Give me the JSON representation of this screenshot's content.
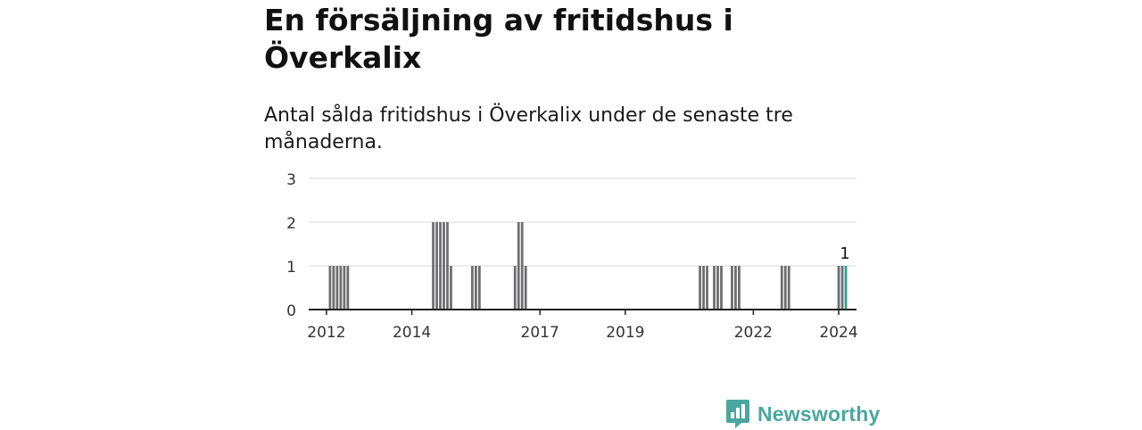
{
  "header": {
    "title": "En försäljning av fritidshus i Överkalix",
    "subtitle": "Antal sålda fritidshus i Överkalix under de senaste tre månaderna."
  },
  "brand": {
    "name": "Newsworthy",
    "color": "#4aa7a0",
    "icon": "newsworthy-logo-icon"
  },
  "chart_data": {
    "type": "bar",
    "title": "En försäljning av fritidshus i Överkalix",
    "subtitle": "Antal sålda fritidshus i Överkalix under de senaste tre månaderna.",
    "xlabel": "",
    "ylabel": "",
    "ylim": [
      0,
      3
    ],
    "yticks": [
      0,
      1,
      2,
      3
    ],
    "xticks": [
      {
        "label": "2012",
        "x": "2012-01"
      },
      {
        "label": "2014",
        "x": "2014-01"
      },
      {
        "label": "2017",
        "x": "2017-01"
      },
      {
        "label": "2019",
        "x": "2019-01"
      },
      {
        "label": "2022",
        "x": "2022-01"
      },
      {
        "label": "2024",
        "x": "2024-01"
      }
    ],
    "x_range": [
      "2011-08",
      "2024-06"
    ],
    "grid": true,
    "bar_color": "#6e6e70",
    "highlight_color": "#2aa198",
    "points": [
      {
        "x": "2012-01",
        "y": 0
      },
      {
        "x": "2012-02",
        "y": 1
      },
      {
        "x": "2012-03",
        "y": 1
      },
      {
        "x": "2012-04",
        "y": 1
      },
      {
        "x": "2012-05",
        "y": 1
      },
      {
        "x": "2012-06",
        "y": 1
      },
      {
        "x": "2012-07",
        "y": 1
      },
      {
        "x": "2014-07",
        "y": 2
      },
      {
        "x": "2014-08",
        "y": 2
      },
      {
        "x": "2014-09",
        "y": 2
      },
      {
        "x": "2014-10",
        "y": 2
      },
      {
        "x": "2014-11",
        "y": 2
      },
      {
        "x": "2014-12",
        "y": 1
      },
      {
        "x": "2015-06",
        "y": 1
      },
      {
        "x": "2015-07",
        "y": 1
      },
      {
        "x": "2015-08",
        "y": 1
      },
      {
        "x": "2016-06",
        "y": 1
      },
      {
        "x": "2016-07",
        "y": 2
      },
      {
        "x": "2016-08",
        "y": 2
      },
      {
        "x": "2016-09",
        "y": 1
      },
      {
        "x": "2020-10",
        "y": 1
      },
      {
        "x": "2020-11",
        "y": 1
      },
      {
        "x": "2020-12",
        "y": 1
      },
      {
        "x": "2021-02",
        "y": 1
      },
      {
        "x": "2021-03",
        "y": 1
      },
      {
        "x": "2021-04",
        "y": 1
      },
      {
        "x": "2021-07",
        "y": 1
      },
      {
        "x": "2021-08",
        "y": 1
      },
      {
        "x": "2021-09",
        "y": 1
      },
      {
        "x": "2022-09",
        "y": 1
      },
      {
        "x": "2022-10",
        "y": 1
      },
      {
        "x": "2022-11",
        "y": 1
      },
      {
        "x": "2024-01",
        "y": 1
      },
      {
        "x": "2024-02",
        "y": 1
      },
      {
        "x": "2024-03",
        "y": 1
      }
    ],
    "highlight": {
      "x": "2024-03",
      "y": 1,
      "label": "1"
    }
  }
}
